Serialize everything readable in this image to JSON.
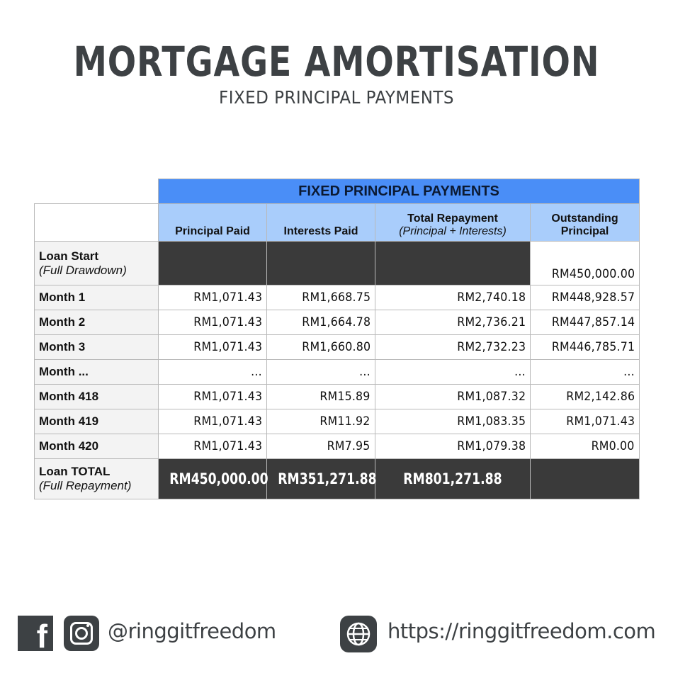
{
  "header": {
    "title": "MORTGAGE AMORTISATION",
    "subtitle": "FIXED PRINCIPAL PAYMENTS"
  },
  "table": {
    "banner": "FIXED PRINCIPAL PAYMENTS",
    "columns": {
      "principal": "Principal Paid",
      "interest": "Interests Paid",
      "total": "Total Repayment",
      "total_sub": "(Principal + Interests)",
      "outstanding_1": "Outstanding",
      "outstanding_2": "Principal"
    },
    "loan_start": {
      "label": "Loan Start",
      "sub": "(Full Drawdown)",
      "outstanding": "RM450,000.00"
    },
    "rows": [
      {
        "label": "Month 1",
        "principal": "RM1,071.43",
        "interest": "RM1,668.75",
        "total": "RM2,740.18",
        "outstanding": "RM448,928.57"
      },
      {
        "label": "Month 2",
        "principal": "RM1,071.43",
        "interest": "RM1,664.78",
        "total": "RM2,736.21",
        "outstanding": "RM447,857.14"
      },
      {
        "label": "Month 3",
        "principal": "RM1,071.43",
        "interest": "RM1,660.80",
        "total": "RM2,732.23",
        "outstanding": "RM446,785.71"
      },
      {
        "label": "Month ...",
        "principal": "...",
        "interest": "...",
        "total": "...",
        "outstanding": "..."
      },
      {
        "label": "Month 418",
        "principal": "RM1,071.43",
        "interest": "RM15.89",
        "total": "RM1,087.32",
        "outstanding": "RM2,142.86"
      },
      {
        "label": "Month 419",
        "principal": "RM1,071.43",
        "interest": "RM11.92",
        "total": "RM1,083.35",
        "outstanding": "RM1,071.43"
      },
      {
        "label": "Month 420",
        "principal": "RM1,071.43",
        "interest": "RM7.95",
        "total": "RM1,079.38",
        "outstanding": "RM0.00"
      }
    ],
    "loan_total": {
      "label": "Loan TOTAL",
      "sub": "(Full Repayment)",
      "principal": "RM450,000.00",
      "interest": "RM351,271.88",
      "total": "RM801,271.88"
    }
  },
  "footer": {
    "facebook_icon": "facebook-icon",
    "instagram_icon": "instagram-icon",
    "handle": "@ringgitfreedom",
    "globe_icon": "globe-icon",
    "url": "https://ringgitfreedom.com"
  },
  "colors": {
    "banner_blue": "#4a8ef7",
    "header_light_blue": "#a9cdfb",
    "dark_cell": "#3a3a3a",
    "title_gray": "#3d4144"
  }
}
